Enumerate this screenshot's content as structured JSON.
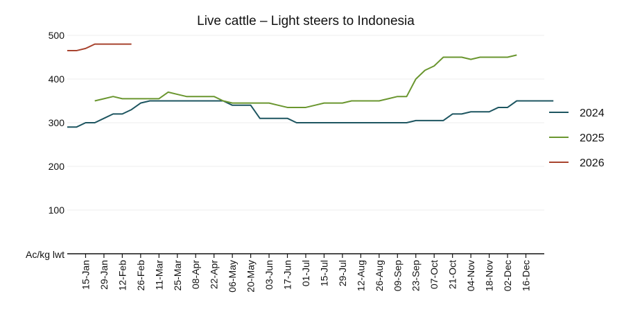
{
  "chart_data": {
    "type": "line",
    "title": "Live cattle – Light steers to Indonesia",
    "ylabel": "Ac/kg lwt",
    "ylim": [
      0,
      500
    ],
    "yticks": [
      100,
      200,
      300,
      400,
      500
    ],
    "grid": true,
    "legend_position": "right",
    "x_labels": [
      "15-Jan",
      "29-Jan",
      "12-Feb",
      "26-Feb",
      "11-Mar",
      "25-Mar",
      "08-Apr",
      "22-Apr",
      "06-May",
      "20-May",
      "03-Jun",
      "17-Jun",
      "01-Jul",
      "15-Jul",
      "29-Jul",
      "12-Aug",
      "26-Aug",
      "09-Sep",
      "23-Sep",
      "07-Oct",
      "21-Oct",
      "04-Nov",
      "18-Nov",
      "02-Dec",
      "16-Dec"
    ],
    "series": [
      {
        "name": "2024",
        "color": "#1d5560",
        "values": [
          290,
          290,
          300,
          300,
          310,
          320,
          320,
          330,
          345,
          350,
          350,
          350,
          350,
          350,
          350,
          350,
          350,
          350,
          340,
          340,
          340,
          310,
          310,
          310,
          310,
          300,
          300,
          300,
          300,
          300,
          300,
          300,
          300,
          300,
          300,
          300,
          300,
          300,
          305,
          305,
          305,
          305,
          320,
          320,
          325,
          325,
          325,
          335,
          335,
          350,
          350,
          350,
          350,
          350
        ]
      },
      {
        "name": "2025",
        "color": "#6a962f",
        "values": [
          null,
          null,
          null,
          350,
          355,
          360,
          355,
          355,
          355,
          355,
          355,
          370,
          365,
          360,
          360,
          360,
          360,
          350,
          345,
          345,
          345,
          345,
          345,
          340,
          335,
          335,
          335,
          340,
          345,
          345,
          345,
          350,
          350,
          350,
          350,
          355,
          360,
          360,
          400,
          420,
          430,
          450,
          450,
          450,
          445,
          450,
          450,
          450,
          450,
          455,
          null,
          null,
          null,
          null
        ]
      },
      {
        "name": "2026",
        "color": "#a8432e",
        "values": [
          465,
          465,
          470,
          480,
          480,
          480,
          480,
          480
        ]
      }
    ]
  }
}
